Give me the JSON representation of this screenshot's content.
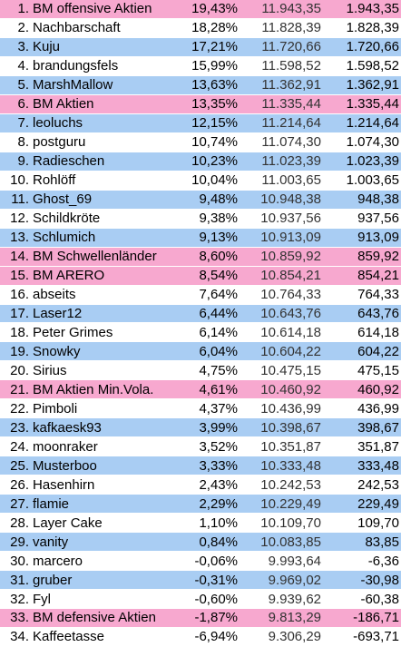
{
  "colors": {
    "pink": "#f7a8cf",
    "blue": "#a9cdf3",
    "white": "#ffffff"
  },
  "rows": [
    {
      "rank": "1.",
      "name": "BM offensive Aktien",
      "pct": "19,43%",
      "value": "11.943,35",
      "gain": "1.943,35",
      "color": "pink"
    },
    {
      "rank": "2.",
      "name": "Nachbarschaft",
      "pct": "18,28%",
      "value": "11.828,39",
      "gain": "1.828,39",
      "color": "white"
    },
    {
      "rank": "3.",
      "name": "Kuju",
      "pct": "17,21%",
      "value": "11.720,66",
      "gain": "1.720,66",
      "color": "blue"
    },
    {
      "rank": "4.",
      "name": "brandungsfels",
      "pct": "15,99%",
      "value": "11.598,52",
      "gain": "1.598,52",
      "color": "white"
    },
    {
      "rank": "5.",
      "name": "MarshMallow",
      "pct": "13,63%",
      "value": "11.362,91",
      "gain": "1.362,91",
      "color": "blue"
    },
    {
      "rank": "6.",
      "name": "BM Aktien",
      "pct": "13,35%",
      "value": "11.335,44",
      "gain": "1.335,44",
      "color": "pink"
    },
    {
      "rank": "7.",
      "name": "leoluchs",
      "pct": "12,15%",
      "value": "11.214,64",
      "gain": "1.214,64",
      "color": "blue"
    },
    {
      "rank": "8.",
      "name": "postguru",
      "pct": "10,74%",
      "value": "11.074,30",
      "gain": "1.074,30",
      "color": "white"
    },
    {
      "rank": "9.",
      "name": "Radieschen",
      "pct": "10,23%",
      "value": "11.023,39",
      "gain": "1.023,39",
      "color": "blue"
    },
    {
      "rank": "10.",
      "name": "Rohlöff",
      "pct": "10,04%",
      "value": "11.003,65",
      "gain": "1.003,65",
      "color": "white"
    },
    {
      "rank": "11.",
      "name": "Ghost_69",
      "pct": "9,48%",
      "value": "10.948,38",
      "gain": "948,38",
      "color": "blue"
    },
    {
      "rank": "12.",
      "name": "Schildkröte",
      "pct": "9,38%",
      "value": "10.937,56",
      "gain": "937,56",
      "color": "white"
    },
    {
      "rank": "13.",
      "name": "Schlumich",
      "pct": "9,13%",
      "value": "10.913,09",
      "gain": "913,09",
      "color": "blue"
    },
    {
      "rank": "14.",
      "name": "BM Schwellenländer",
      "pct": "8,60%",
      "value": "10.859,92",
      "gain": "859,92",
      "color": "pink"
    },
    {
      "rank": "15.",
      "name": "BM ARERO",
      "pct": "8,54%",
      "value": "10.854,21",
      "gain": "854,21",
      "color": "pink"
    },
    {
      "rank": "16.",
      "name": "abseits",
      "pct": "7,64%",
      "value": "10.764,33",
      "gain": "764,33",
      "color": "white"
    },
    {
      "rank": "17.",
      "name": "Laser12",
      "pct": "6,44%",
      "value": "10.643,76",
      "gain": "643,76",
      "color": "blue"
    },
    {
      "rank": "18.",
      "name": "Peter Grimes",
      "pct": "6,14%",
      "value": "10.614,18",
      "gain": "614,18",
      "color": "white"
    },
    {
      "rank": "19.",
      "name": "Snowky",
      "pct": "6,04%",
      "value": "10.604,22",
      "gain": "604,22",
      "color": "blue"
    },
    {
      "rank": "20.",
      "name": "Sirius",
      "pct": "4,75%",
      "value": "10.475,15",
      "gain": "475,15",
      "color": "white"
    },
    {
      "rank": "21.",
      "name": "BM Aktien Min.Vola.",
      "pct": "4,61%",
      "value": "10.460,92",
      "gain": "460,92",
      "color": "pink"
    },
    {
      "rank": "22.",
      "name": "Pimboli",
      "pct": "4,37%",
      "value": "10.436,99",
      "gain": "436,99",
      "color": "white"
    },
    {
      "rank": "23.",
      "name": "kafkaesk93",
      "pct": "3,99%",
      "value": "10.398,67",
      "gain": "398,67",
      "color": "blue"
    },
    {
      "rank": "24.",
      "name": "moonraker",
      "pct": "3,52%",
      "value": "10.351,87",
      "gain": "351,87",
      "color": "white"
    },
    {
      "rank": "25.",
      "name": "Musterboo",
      "pct": "3,33%",
      "value": "10.333,48",
      "gain": "333,48",
      "color": "blue"
    },
    {
      "rank": "26.",
      "name": "Hasenhirn",
      "pct": "2,43%",
      "value": "10.242,53",
      "gain": "242,53",
      "color": "white"
    },
    {
      "rank": "27.",
      "name": "flamie",
      "pct": "2,29%",
      "value": "10.229,49",
      "gain": "229,49",
      "color": "blue"
    },
    {
      "rank": "28.",
      "name": "Layer Cake",
      "pct": "1,10%",
      "value": "10.109,70",
      "gain": "109,70",
      "color": "white"
    },
    {
      "rank": "29.",
      "name": "vanity",
      "pct": "0,84%",
      "value": "10.083,85",
      "gain": "83,85",
      "color": "blue"
    },
    {
      "rank": "30.",
      "name": "marcero",
      "pct": "-0,06%",
      "value": "9.993,64",
      "gain": "-6,36",
      "color": "white"
    },
    {
      "rank": "31.",
      "name": "gruber",
      "pct": "-0,31%",
      "value": "9.969,02",
      "gain": "-30,98",
      "color": "blue"
    },
    {
      "rank": "32.",
      "name": "Fyl",
      "pct": "-0,60%",
      "value": "9.939,62",
      "gain": "-60,38",
      "color": "white"
    },
    {
      "rank": "33.",
      "name": "BM defensive Aktien",
      "pct": "-1,87%",
      "value": "9.813,29",
      "gain": "-186,71",
      "color": "pink"
    },
    {
      "rank": "34.",
      "name": "Kaffeetasse",
      "pct": "-6,94%",
      "value": "9.306,29",
      "gain": "-693,71",
      "color": "white"
    }
  ]
}
